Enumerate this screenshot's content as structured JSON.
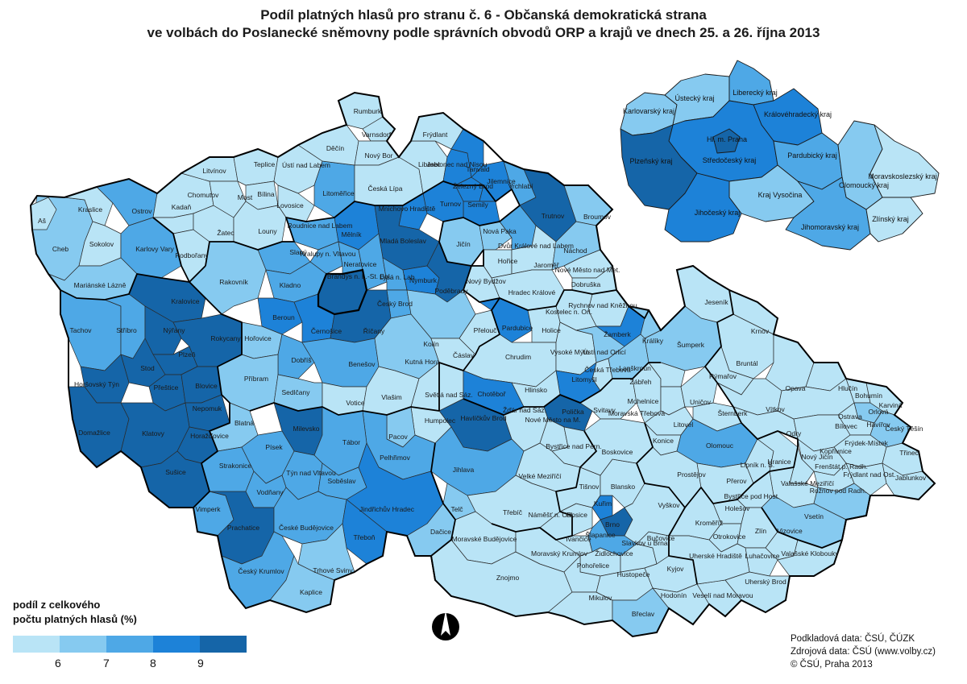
{
  "title": {
    "line1": "Podíl platných hlasů pro stranu č. 6 - Občanská demokratická strana",
    "line2": "ve volbách do Poslanecké sněmovny podle správních obvodů ORP a krajů ve dnech 25. a 26. října 2013"
  },
  "colors": {
    "c1": "#b9e4f6",
    "c2": "#86caf0",
    "c3": "#4ea8e6",
    "c4": "#1d82d8",
    "c5": "#1565a8",
    "border": "#1a1a1a"
  },
  "legend": {
    "title_line1": "podíl z celkového",
    "title_line2": "počtu platných hlasů (%)",
    "breaks": [
      "6",
      "7",
      "8",
      "9"
    ],
    "classes": [
      "< 6",
      "6 - 7",
      "7 - 8",
      "8 - 9",
      "> 9"
    ]
  },
  "credits": {
    "line1": "Podkladová data: ČSÚ, ČÚZK",
    "line2": "Zdrojová data: ČSÚ (www.volby.cz)",
    "line3": "© ČSÚ, Praha 2013"
  },
  "north_arrow": "north-arrow-icon",
  "regions_labels": {
    "karlovarsky": "Karlovarský kraj",
    "ustecky": "Ústecký kraj",
    "liberecky": "Liberecký kraj",
    "kralovehradecky": "Královéhradecký kraj",
    "praha": "Hl. m. Praha",
    "stredocesky": "Středočeský kraj",
    "plzensky": "Plzeňský kraj",
    "pardubicky": "Pardubický kraj",
    "vysocina": "Kraj Vysočina",
    "olomoucky": "Olomoucký kraj",
    "moravskoslezsky": "Moravskoslezský kraj",
    "jihocesky": "Jihočeský kraj",
    "jihomoravsky": "Jihomoravský kraj",
    "zlinsky": "Zlínský kraj"
  },
  "orp_labels": [
    "Rumburk",
    "Varnsdorf",
    "Frýdlant",
    "Děčín",
    "Nový Bor",
    "Liberec",
    "Jablonec nad Nisou",
    "Tanvald",
    "Teplice",
    "Ústí nad Labem",
    "Česká Lípa",
    "Železný Brod",
    "Jilemnice",
    "Trutnov",
    "Vrchlabí",
    "Litvínov",
    "Chomutov",
    "Most",
    "Bílina",
    "Lovosice",
    "Litoměřice",
    "Mnichovo Hradiště",
    "Turnov",
    "Semily",
    "Aš",
    "Kraslice",
    "Ostrov",
    "Kadaň",
    "Žatec",
    "Roudnice nad Labem",
    "Mělník",
    "Mladá Boleslav",
    "Broumov",
    "Nová Paka",
    "Dvůr Králové nad Labem",
    "Jičín",
    "Cheb",
    "Sokolov",
    "Karlovy Vary",
    "Louny",
    "Slaný",
    "Kralupy n. Vltavou",
    "Neratovice",
    "Podbořany",
    "Hořice",
    "Jaroměř",
    "Náchod",
    "Mariánské Lázně",
    "Rakovník",
    "Kladno",
    "Brandýs n. L.-St. Bol.",
    "Lysá n. Lab.",
    "Nymburk",
    "Nový Bydžov",
    "Nové Město nad Met.",
    "Dobruška",
    "Kralovice",
    "Poděbrady",
    "Hradec Králové",
    "Český Brod",
    "Rychnov nad Kněžnou",
    "Kostelec n. Orl.",
    "Tachov",
    "Stříbro",
    "Nýřany",
    "Beroun",
    "Černošice",
    "Říčany",
    "Kolín",
    "Přelouč",
    "Pardubice",
    "Holice",
    "Žamberk",
    "Králíky",
    "Rokycany",
    "Plzeň",
    "Hořovice",
    "Ústí nad Orlicí",
    "Jeseník",
    "Stod",
    "Dobříš",
    "Benešov",
    "Kutná Hora",
    "Čáslav",
    "Chrudim",
    "Vysoké Mýto",
    "Česká Třebová",
    "Lanškroun",
    "Šumperk",
    "Horšovský Týn",
    "Přeštice",
    "Blovice",
    "Příbram",
    "Sedlčany",
    "Votice",
    "Vlašim",
    "Světlá nad Sáz.",
    "Chotěboř",
    "Hlinsko",
    "Litomyšl",
    "Zábřeh",
    "Bruntál",
    "Krnov",
    "Rýmařov",
    "Domažlice",
    "Nepomuk",
    "Havlíčkův Brod",
    "Svitavy",
    "Polička",
    "Mohelnice",
    "Uničov",
    "Opava",
    "Hlučín",
    "Bohumín",
    "Karviná",
    "Klatovy",
    "Horažďovice",
    "Blatná",
    "Milevsko",
    "Tábor",
    "Humpolec",
    "Pacov",
    "Žďár nad Sáz.",
    "Nové Město na M.",
    "Moravská Třebová",
    "Litovel",
    "Šternberk",
    "Vítkov",
    "Ostrava",
    "Orlová",
    "Havířov",
    "Český Těšín",
    "Pelhřimov",
    "Jihlava",
    "Bystřice nad Pern.",
    "Boskovice",
    "Konice",
    "Olomouc",
    "Bílovec",
    "Frýdek-Místek",
    "Třinec",
    "Sušice",
    "Strakonice",
    "Písek",
    "Týn nad Vltavou",
    "Soběslav",
    "Velké Meziříčí",
    "Prostějov",
    "Hranice",
    "Odry",
    "Kopřivnice",
    "Nový Jičín",
    "Frenštát p. Radh.",
    "Frýdlant nad Ost.",
    "Jablunkov",
    "Vimperk",
    "Vodňany",
    "Tišnov",
    "Blansko",
    "Přerov",
    "Lipník n. B.",
    "Valašské Meziříčí",
    "Rožnov pod Radh.",
    "Bystřice pod Host.",
    "Holešov",
    "Jindřichův Hradec",
    "Třebíč",
    "Náměšť n. Osl.",
    "Rosice",
    "Kuřim",
    "Brno",
    "Šlapanice",
    "Vyškov",
    "Kroměříž",
    "Vsetín",
    "Prachatice",
    "České Budějovice",
    "Telč",
    "Dačice",
    "Moravské Budějovice",
    "Ivančice",
    "Pohořelice",
    "Slavkov u Brna",
    "Bučovice",
    "Otrokovice",
    "Zlín",
    "Vizovice",
    "Třeboň",
    "Židlochovice",
    "Kyjov",
    "Uherské Hradiště",
    "Luhačovice",
    "Valašské Klobouky",
    "Český Krumlov",
    "Trhové Sviny",
    "Znojmo",
    "Moravský Krumlov",
    "Hustopeče",
    "Hodonín",
    "Uherský Brod",
    "Kaplice",
    "Mikulov",
    "Břeclav",
    "Veselí nad Moravou"
  ]
}
